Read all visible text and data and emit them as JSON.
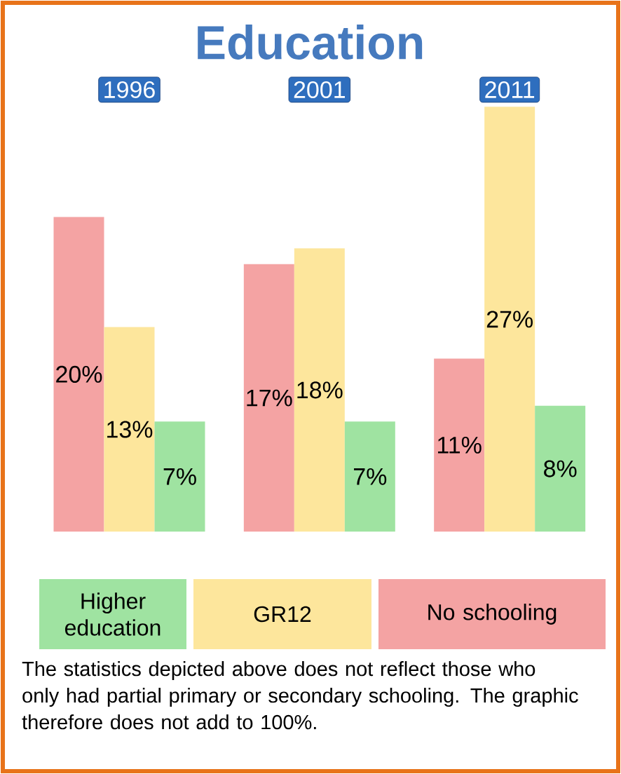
{
  "chart_data": {
    "type": "bar",
    "title": "Education",
    "categories": [
      "1996",
      "2001",
      "2011"
    ],
    "series": [
      {
        "name": "No schooling",
        "color": "#f4a3a3",
        "values": [
          20,
          17,
          11
        ],
        "value_labels": [
          "20%",
          "17%",
          "11%"
        ]
      },
      {
        "name": "GR12",
        "color": "#fde69c",
        "values": [
          13,
          18,
          27
        ],
        "value_labels": [
          "13%",
          "18%",
          "27%"
        ]
      },
      {
        "name": "Higher education",
        "color": "#9fe3a1",
        "values": [
          7,
          7,
          8
        ],
        "value_labels": [
          "7%",
          "7%",
          "8%"
        ]
      }
    ],
    "ylim": [
      0,
      27
    ],
    "legend": "bottom",
    "annotations": [
      "The statistics depicted above does not reflect those who only had partial primary or secondary schooling. The graphic therefore does not add to 100%."
    ]
  }
}
